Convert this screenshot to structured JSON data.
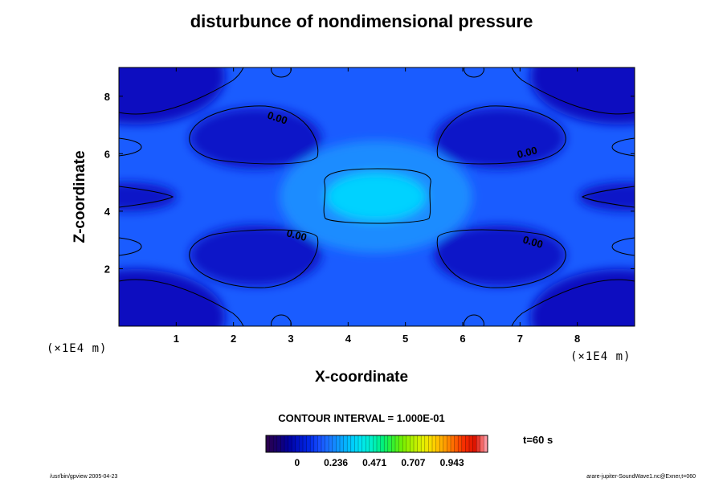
{
  "chart_data": {
    "type": "contour",
    "title": "disturbunce of nondimensional pressure",
    "xlabel": "X-coordinate",
    "ylabel": "Z-coordinate",
    "x_unit": "(×1E4 m)",
    "y_unit": "(×1E4 m)",
    "xlim": [
      0,
      9
    ],
    "ylim": [
      0,
      9
    ],
    "x_ticks": [
      "1",
      "2",
      "3",
      "4",
      "5",
      "6",
      "7",
      "8"
    ],
    "y_ticks": [
      "2",
      "4",
      "6",
      "8"
    ],
    "contour_labels": [
      "0.00",
      "0.00",
      "0.00",
      "0.00"
    ],
    "contour_interval": "CONTOUR INTERVAL = 1.000E-01",
    "time": "t=60 s",
    "colorbar": {
      "colors": [
        "#2a0050",
        "#16006e",
        "#0000a0",
        "#0014c8",
        "#0028e6",
        "#1850ff",
        "#1a78ff",
        "#0aa0ff",
        "#00c8ff",
        "#00e6f0",
        "#00f0c8",
        "#00f080",
        "#32f032",
        "#78f000",
        "#b4f000",
        "#e6f000",
        "#ffd200",
        "#ffa000",
        "#ff6400",
        "#f52800",
        "#dc1400",
        "#ff96a0"
      ],
      "tick_labels": [
        "0",
        "0.236",
        "0.471",
        "0.707",
        "0.943"
      ],
      "tick_values": [
        0,
        0.236,
        0.471,
        0.707,
        0.943
      ],
      "vmin": -0.19,
      "vmax": 1.16
    }
  },
  "footer": {
    "left": "/usr/bin/gpview 2005-04-23",
    "right": "arare-jupiter-SoundWave1.nc@Exner,t=060"
  }
}
